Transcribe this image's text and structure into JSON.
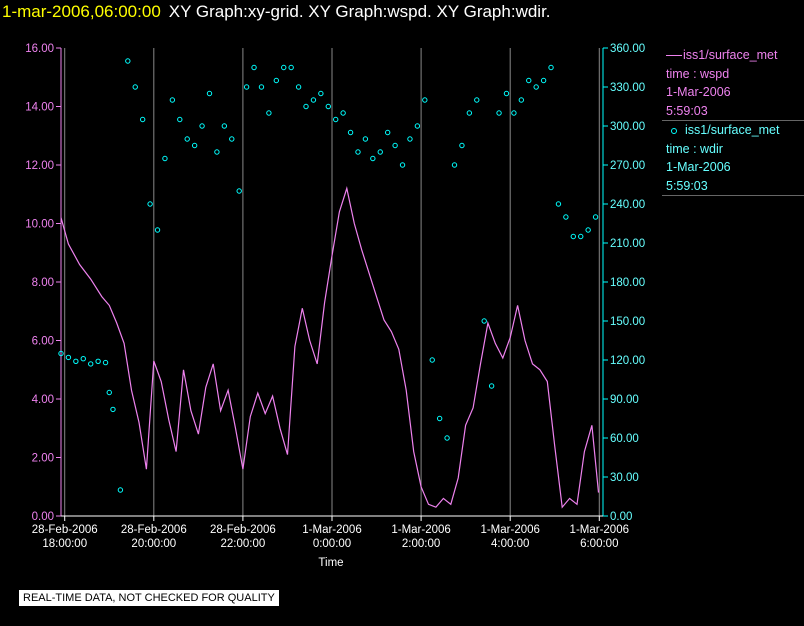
{
  "header": {
    "timestamp": "1-mar-2006,06:00:00",
    "title": "XY Graph:xy-grid.  XY Graph:wspd.  XY Graph:wdir."
  },
  "legend": {
    "wspd": {
      "label": "iss1/surface_met",
      "line2": "time : wspd",
      "line3": "1-Mar-2006",
      "line4": "5:59:03"
    },
    "wdir": {
      "label": "iss1/surface_met",
      "line2": "time : wdir",
      "line3": "1-Mar-2006",
      "line4": "5:59:03"
    }
  },
  "quality_note": "REAL-TIME DATA, NOT CHECKED FOR QUALITY",
  "colors": {
    "wspd": "#ee82ee",
    "wdir": "#00ffff",
    "grid": "#888888",
    "background": "#000000",
    "timestamp": "#ffff00"
  },
  "chart_data": {
    "type": "line",
    "xlabel": "Time",
    "xlim": [
      "2006-02-28T17:55",
      "2006-03-01T06:05"
    ],
    "x_ticks": [
      {
        "date": "28-Feb-2006",
        "time": "18:00:00"
      },
      {
        "date": "28-Feb-2006",
        "time": "20:00:00"
      },
      {
        "date": "28-Feb-2006",
        "time": "22:00:00"
      },
      {
        "date": "1-Mar-2006",
        "time": "0:00:00"
      },
      {
        "date": "1-Mar-2006",
        "time": "2:00:00"
      },
      {
        "date": "1-Mar-2006",
        "time": "4:00:00"
      },
      {
        "date": "1-Mar-2006",
        "time": "6:00:00"
      }
    ],
    "y_left": {
      "ylim": [
        0,
        16
      ],
      "ticks": [
        "0.00",
        "2.00",
        "4.00",
        "6.00",
        "8.00",
        "10.00",
        "12.00",
        "14.00",
        "16.00"
      ]
    },
    "y_right": {
      "ylim": [
        0,
        360
      ],
      "ticks": [
        "0.00",
        "30.00",
        "60.00",
        "90.00",
        "120.00",
        "150.00",
        "180.00",
        "210.00",
        "240.00",
        "270.00",
        "300.00",
        "330.00",
        "360.00"
      ]
    },
    "grid": "vertical",
    "series": [
      {
        "name": "wspd",
        "axis": "left",
        "style": "line",
        "x": [
          "2006-02-28T17:55",
          "2006-02-28T18:05",
          "2006-02-28T18:20",
          "2006-02-28T18:35",
          "2006-02-28T18:50",
          "2006-02-28T19:00",
          "2006-02-28T19:10",
          "2006-02-28T19:20",
          "2006-02-28T19:30",
          "2006-02-28T19:40",
          "2006-02-28T19:50",
          "2006-02-28T20:00",
          "2006-02-28T20:10",
          "2006-02-28T20:20",
          "2006-02-28T20:30",
          "2006-02-28T20:40",
          "2006-02-28T20:50",
          "2006-02-28T21:00",
          "2006-02-28T21:10",
          "2006-02-28T21:20",
          "2006-02-28T21:30",
          "2006-02-28T21:40",
          "2006-02-28T21:50",
          "2006-02-28T22:00",
          "2006-02-28T22:10",
          "2006-02-28T22:20",
          "2006-02-28T22:30",
          "2006-02-28T22:40",
          "2006-02-28T22:50",
          "2006-02-28T23:00",
          "2006-02-28T23:10",
          "2006-02-28T23:20",
          "2006-02-28T23:30",
          "2006-02-28T23:40",
          "2006-02-28T23:50",
          "2006-03-01T00:00",
          "2006-03-01T00:10",
          "2006-03-01T00:20",
          "2006-03-01T00:30",
          "2006-03-01T00:40",
          "2006-03-01T00:50",
          "2006-03-01T01:00",
          "2006-03-01T01:10",
          "2006-03-01T01:20",
          "2006-03-01T01:30",
          "2006-03-01T01:40",
          "2006-03-01T01:50",
          "2006-03-01T02:00",
          "2006-03-01T02:10",
          "2006-03-01T02:20",
          "2006-03-01T02:30",
          "2006-03-01T02:40",
          "2006-03-01T02:50",
          "2006-03-01T03:00",
          "2006-03-01T03:10",
          "2006-03-01T03:20",
          "2006-03-01T03:30",
          "2006-03-01T03:40",
          "2006-03-01T03:50",
          "2006-03-01T04:00",
          "2006-03-01T04:10",
          "2006-03-01T04:20",
          "2006-03-01T04:30",
          "2006-03-01T04:40",
          "2006-03-01T04:50",
          "2006-03-01T05:00",
          "2006-03-01T05:10",
          "2006-03-01T05:20",
          "2006-03-01T05:30",
          "2006-03-01T05:40",
          "2006-03-01T05:50",
          "2006-03-01T05:59"
        ],
        "values": [
          10.2,
          9.3,
          8.6,
          8.1,
          7.5,
          7.2,
          6.6,
          5.9,
          4.3,
          3.2,
          1.6,
          5.3,
          4.6,
          3.3,
          2.2,
          5.0,
          3.6,
          2.8,
          4.4,
          5.2,
          3.6,
          4.3,
          3.0,
          1.6,
          3.4,
          4.2,
          3.5,
          4.1,
          3.0,
          2.1,
          5.8,
          7.1,
          6.0,
          5.2,
          7.3,
          8.9,
          10.4,
          11.2,
          10.0,
          9.1,
          8.3,
          7.5,
          6.7,
          6.3,
          5.7,
          4.3,
          2.2,
          1.0,
          0.4,
          0.3,
          0.6,
          0.4,
          1.3,
          3.1,
          3.7,
          5.2,
          6.6,
          5.9,
          5.4,
          6.1,
          7.2,
          6.0,
          5.2,
          5.0,
          4.6,
          2.4,
          0.3,
          0.6,
          0.4,
          2.2,
          3.1,
          0.8
        ]
      },
      {
        "name": "wdir",
        "axis": "right",
        "style": "scatter",
        "x": [
          "2006-02-28T17:55",
          "2006-02-28T18:05",
          "2006-02-28T18:15",
          "2006-02-28T18:25",
          "2006-02-28T18:35",
          "2006-02-28T18:45",
          "2006-02-28T18:55",
          "2006-02-28T19:00",
          "2006-02-28T19:05",
          "2006-02-28T19:15",
          "2006-02-28T19:25",
          "2006-02-28T19:35",
          "2006-02-28T19:45",
          "2006-02-28T19:55",
          "2006-02-28T20:05",
          "2006-02-28T20:15",
          "2006-02-28T20:25",
          "2006-02-28T20:35",
          "2006-02-28T20:45",
          "2006-02-28T20:55",
          "2006-02-28T21:05",
          "2006-02-28T21:15",
          "2006-02-28T21:25",
          "2006-02-28T21:35",
          "2006-02-28T21:45",
          "2006-02-28T21:55",
          "2006-02-28T22:05",
          "2006-02-28T22:15",
          "2006-02-28T22:25",
          "2006-02-28T22:35",
          "2006-02-28T22:45",
          "2006-02-28T22:55",
          "2006-02-28T23:05",
          "2006-02-28T23:15",
          "2006-02-28T23:25",
          "2006-02-28T23:35",
          "2006-02-28T23:45",
          "2006-02-28T23:55",
          "2006-03-01T00:05",
          "2006-03-01T00:15",
          "2006-03-01T00:25",
          "2006-03-01T00:35",
          "2006-03-01T00:45",
          "2006-03-01T00:55",
          "2006-03-01T01:05",
          "2006-03-01T01:15",
          "2006-03-01T01:25",
          "2006-03-01T01:35",
          "2006-03-01T01:45",
          "2006-03-01T01:55",
          "2006-03-01T02:05",
          "2006-03-01T02:15",
          "2006-03-01T02:25",
          "2006-03-01T02:35",
          "2006-03-01T02:45",
          "2006-03-01T02:55",
          "2006-03-01T03:05",
          "2006-03-01T03:15",
          "2006-03-01T03:25",
          "2006-03-01T03:35",
          "2006-03-01T03:45",
          "2006-03-01T03:55",
          "2006-03-01T04:05",
          "2006-03-01T04:15",
          "2006-03-01T04:25",
          "2006-03-01T04:35",
          "2006-03-01T04:45",
          "2006-03-01T04:55",
          "2006-03-01T05:05",
          "2006-03-01T05:15",
          "2006-03-01T05:25",
          "2006-03-01T05:35",
          "2006-03-01T05:45",
          "2006-03-01T05:55"
        ],
        "values": [
          125,
          122,
          119,
          121,
          117,
          119,
          118,
          95,
          82,
          20,
          350,
          330,
          305,
          240,
          220,
          275,
          320,
          305,
          290,
          285,
          300,
          325,
          280,
          300,
          290,
          250,
          330,
          345,
          330,
          310,
          335,
          345,
          345,
          330,
          315,
          320,
          325,
          315,
          305,
          310,
          295,
          280,
          290,
          275,
          280,
          295,
          285,
          270,
          290,
          300,
          320,
          120,
          75,
          60,
          270,
          285,
          310,
          320,
          150,
          100,
          310,
          325,
          310,
          320,
          335,
          330,
          335,
          345,
          240,
          230,
          215,
          215,
          220,
          230
        ]
      }
    ]
  }
}
